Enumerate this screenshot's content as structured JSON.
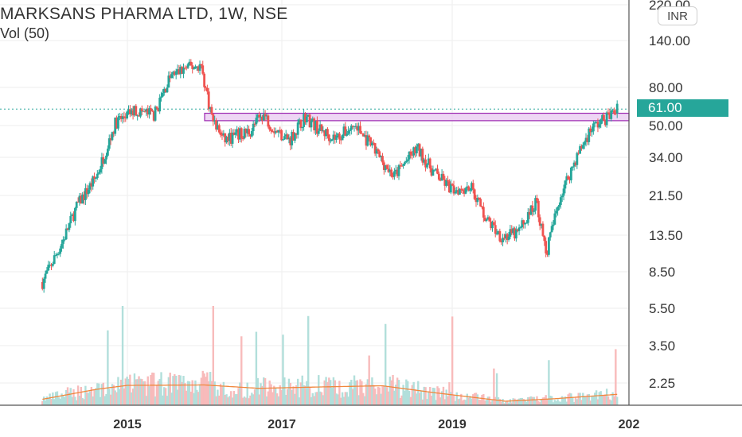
{
  "header": {
    "symbol_line": "MARKSANS PHARMA LTD, 1W, NSE",
    "volume_label": "Vol (50)"
  },
  "currency_badge": "INR",
  "current_price_label": "61.00",
  "colors": {
    "up": "#26a69a",
    "down": "#ef5350",
    "volume_up": "#b2dfdb",
    "volume_down": "#f8bbbb",
    "volume_ma": "#f0883e",
    "zone_border": "#9c27b0",
    "zone_fill": "#e8c8f0",
    "grid": "#eeeeee",
    "last_price_line": "#26a69a"
  },
  "chart_data": {
    "type": "candlestick",
    "title": "MARKSANS PHARMA LTD, 1W, NSE",
    "y_scale": "log",
    "y_tick_labels": [
      "220.00",
      "140.00",
      "80.00",
      "50.00",
      "34.00",
      "21.50",
      "13.50",
      "8.50",
      "5.50",
      "3.50",
      "2.25"
    ],
    "x_tick_labels": [
      "2015",
      "2017",
      "2019",
      "202"
    ],
    "grid": true,
    "last_price": 61.0,
    "resistance_zone": {
      "low": 53,
      "high": 58
    },
    "price_path": [
      {
        "x": 2013.9,
        "y": 7.5
      },
      {
        "x": 2014.15,
        "y": 12
      },
      {
        "x": 2014.35,
        "y": 19
      },
      {
        "x": 2014.6,
        "y": 27
      },
      {
        "x": 2014.85,
        "y": 52
      },
      {
        "x": 2015.1,
        "y": 60
      },
      {
        "x": 2015.35,
        "y": 57
      },
      {
        "x": 2015.55,
        "y": 90
      },
      {
        "x": 2015.75,
        "y": 100
      },
      {
        "x": 2015.95,
        "y": 104
      },
      {
        "x": 2016.1,
        "y": 54
      },
      {
        "x": 2016.25,
        "y": 42
      },
      {
        "x": 2016.6,
        "y": 47
      },
      {
        "x": 2016.75,
        "y": 58
      },
      {
        "x": 2016.9,
        "y": 48
      },
      {
        "x": 2017.1,
        "y": 42
      },
      {
        "x": 2017.3,
        "y": 56
      },
      {
        "x": 2017.5,
        "y": 47
      },
      {
        "x": 2017.7,
        "y": 43
      },
      {
        "x": 2017.95,
        "y": 50
      },
      {
        "x": 2018.2,
        "y": 37
      },
      {
        "x": 2018.45,
        "y": 27
      },
      {
        "x": 2018.75,
        "y": 38
      },
      {
        "x": 2018.95,
        "y": 29
      },
      {
        "x": 2019.2,
        "y": 23
      },
      {
        "x": 2019.45,
        "y": 24
      },
      {
        "x": 2019.65,
        "y": 16
      },
      {
        "x": 2019.85,
        "y": 13
      },
      {
        "x": 2020.05,
        "y": 13.5
      },
      {
        "x": 2020.3,
        "y": 20
      },
      {
        "x": 2020.42,
        "y": 10.5
      },
      {
        "x": 2020.6,
        "y": 21
      },
      {
        "x": 2020.8,
        "y": 33
      },
      {
        "x": 2021.0,
        "y": 48
      },
      {
        "x": 2021.2,
        "y": 55
      },
      {
        "x": 2021.35,
        "y": 61
      }
    ],
    "volume_ma_path": [
      {
        "x": 2013.9,
        "y": 0.3
      },
      {
        "x": 2014.6,
        "y": 0.8
      },
      {
        "x": 2015.0,
        "y": 1.0
      },
      {
        "x": 2016.0,
        "y": 1.02
      },
      {
        "x": 2016.7,
        "y": 0.85
      },
      {
        "x": 2017.5,
        "y": 0.92
      },
      {
        "x": 2018.3,
        "y": 0.98
      },
      {
        "x": 2019.0,
        "y": 0.62
      },
      {
        "x": 2019.9,
        "y": 0.2
      },
      {
        "x": 2020.5,
        "y": 0.32
      },
      {
        "x": 2021.35,
        "y": 0.55
      }
    ]
  }
}
